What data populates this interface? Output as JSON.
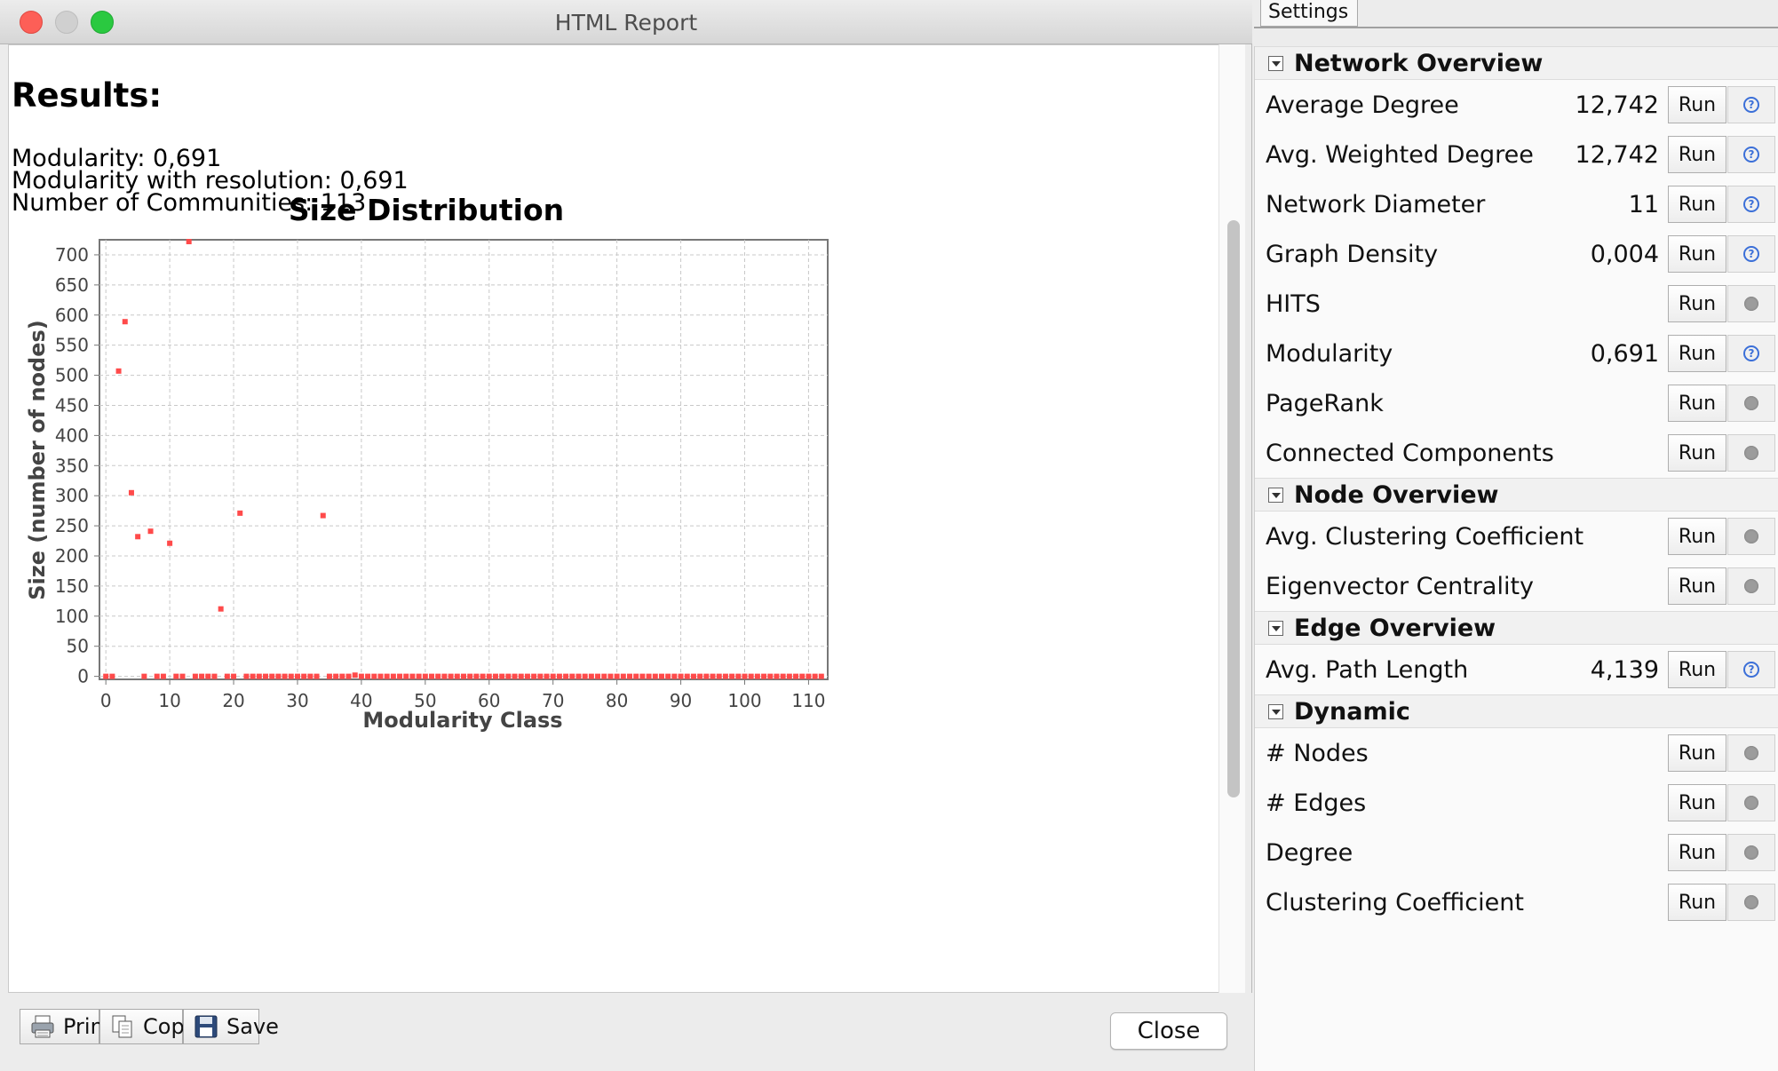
{
  "window": {
    "title": "HTML Report"
  },
  "report": {
    "heading": "Results:",
    "lines": [
      "Modularity: 0,691",
      "Modularity with resolution: 0,691",
      "Number of Communities: 113"
    ]
  },
  "chart_data": {
    "type": "scatter",
    "title": "Size Distribution",
    "xlabel": "Modularity Class",
    "ylabel": "Size (number of nodes)",
    "xlim": [
      -1,
      113
    ],
    "ylim": [
      -5,
      725
    ],
    "xticks": [
      "0",
      "10",
      "20",
      "30",
      "40",
      "50",
      "60",
      "70",
      "80",
      "90",
      "100",
      "110"
    ],
    "yticks": [
      "0",
      "50",
      "100",
      "150",
      "200",
      "250",
      "300",
      "350",
      "400",
      "450",
      "500",
      "550",
      "600",
      "650",
      "700"
    ],
    "grid": true,
    "color": "#ff4a4a",
    "points": [
      [
        0,
        0
      ],
      [
        1,
        0
      ],
      [
        2,
        507
      ],
      [
        3,
        589
      ],
      [
        4,
        305
      ],
      [
        5,
        232
      ],
      [
        6,
        0
      ],
      [
        7,
        241
      ],
      [
        8,
        0
      ],
      [
        9,
        0
      ],
      [
        10,
        221
      ],
      [
        11,
        0
      ],
      [
        12,
        0
      ],
      [
        13,
        722
      ],
      [
        14,
        0
      ],
      [
        15,
        0
      ],
      [
        16,
        0
      ],
      [
        17,
        0
      ],
      [
        18,
        112
      ],
      [
        19,
        0
      ],
      [
        20,
        0
      ],
      [
        21,
        271
      ],
      [
        22,
        0
      ],
      [
        23,
        0
      ],
      [
        24,
        0
      ],
      [
        25,
        0
      ],
      [
        26,
        0
      ],
      [
        27,
        0
      ],
      [
        28,
        0
      ],
      [
        29,
        0
      ],
      [
        30,
        0
      ],
      [
        31,
        0
      ],
      [
        32,
        0
      ],
      [
        33,
        0
      ],
      [
        34,
        267
      ],
      [
        35,
        0
      ],
      [
        36,
        0
      ],
      [
        37,
        0
      ],
      [
        38,
        0
      ],
      [
        39,
        2
      ],
      [
        40,
        0
      ],
      [
        41,
        0
      ],
      [
        42,
        0
      ],
      [
        43,
        0
      ],
      [
        44,
        0
      ],
      [
        45,
        0
      ],
      [
        46,
        0
      ],
      [
        47,
        0
      ],
      [
        48,
        0
      ],
      [
        49,
        0
      ],
      [
        50,
        0
      ],
      [
        51,
        0
      ],
      [
        52,
        0
      ],
      [
        53,
        0
      ],
      [
        54,
        0
      ],
      [
        55,
        0
      ],
      [
        56,
        0
      ],
      [
        57,
        0
      ],
      [
        58,
        0
      ],
      [
        59,
        0
      ],
      [
        60,
        0
      ],
      [
        61,
        0
      ],
      [
        62,
        0
      ],
      [
        63,
        0
      ],
      [
        64,
        0
      ],
      [
        65,
        0
      ],
      [
        66,
        0
      ],
      [
        67,
        0
      ],
      [
        68,
        0
      ],
      [
        69,
        0
      ],
      [
        70,
        0
      ],
      [
        71,
        0
      ],
      [
        72,
        0
      ],
      [
        73,
        0
      ],
      [
        74,
        0
      ],
      [
        75,
        0
      ],
      [
        76,
        0
      ],
      [
        77,
        0
      ],
      [
        78,
        0
      ],
      [
        79,
        0
      ],
      [
        80,
        0
      ],
      [
        81,
        0
      ],
      [
        82,
        0
      ],
      [
        83,
        0
      ],
      [
        84,
        0
      ],
      [
        85,
        0
      ],
      [
        86,
        0
      ],
      [
        87,
        0
      ],
      [
        88,
        0
      ],
      [
        89,
        0
      ],
      [
        90,
        0
      ],
      [
        91,
        0
      ],
      [
        92,
        0
      ],
      [
        93,
        0
      ],
      [
        94,
        0
      ],
      [
        95,
        0
      ],
      [
        96,
        0
      ],
      [
        97,
        0
      ],
      [
        98,
        0
      ],
      [
        99,
        0
      ],
      [
        100,
        0
      ],
      [
        101,
        0
      ],
      [
        102,
        0
      ],
      [
        103,
        0
      ],
      [
        104,
        0
      ],
      [
        105,
        0
      ],
      [
        106,
        0
      ],
      [
        107,
        0
      ],
      [
        108,
        0
      ],
      [
        109,
        0
      ],
      [
        110,
        0
      ],
      [
        111,
        0
      ],
      [
        112,
        0
      ]
    ]
  },
  "footer": {
    "print_label": "Print",
    "copy_label": "Copy",
    "save_label": "Save",
    "close_label": "Close"
  },
  "settings": {
    "tab_label": "Settings",
    "sections": [
      {
        "title": "Network Overview",
        "rows": [
          {
            "name": "Average Degree",
            "value": "12,742",
            "run": "Run",
            "icon": "help-icon"
          },
          {
            "name": "Avg. Weighted Degree",
            "value": "12,742",
            "run": "Run",
            "icon": "help-icon"
          },
          {
            "name": "Network Diameter",
            "value": "11",
            "run": "Run",
            "icon": "help-icon"
          },
          {
            "name": "Graph Density",
            "value": "0,004",
            "run": "Run",
            "icon": "help-icon"
          },
          {
            "name": "HITS",
            "value": "",
            "run": "Run",
            "icon": "status-dot-icon"
          },
          {
            "name": "Modularity",
            "value": "0,691",
            "run": "Run",
            "icon": "help-icon"
          },
          {
            "name": "PageRank",
            "value": "",
            "run": "Run",
            "icon": "status-dot-icon"
          },
          {
            "name": "Connected Components",
            "value": "",
            "run": "Run",
            "icon": "status-dot-icon"
          }
        ]
      },
      {
        "title": "Node Overview",
        "rows": [
          {
            "name": "Avg. Clustering Coefficient",
            "value": "",
            "run": "Run",
            "icon": "status-dot-icon"
          },
          {
            "name": "Eigenvector Centrality",
            "value": "",
            "run": "Run",
            "icon": "status-dot-icon"
          }
        ]
      },
      {
        "title": "Edge Overview",
        "rows": [
          {
            "name": "Avg. Path Length",
            "value": "4,139",
            "run": "Run",
            "icon": "help-icon"
          }
        ]
      },
      {
        "title": "Dynamic",
        "rows": [
          {
            "name": "# Nodes",
            "value": "",
            "run": "Run",
            "icon": "status-dot-icon"
          },
          {
            "name": "# Edges",
            "value": "",
            "run": "Run",
            "icon": "status-dot-icon"
          },
          {
            "name": "Degree",
            "value": "",
            "run": "Run",
            "icon": "status-dot-icon"
          },
          {
            "name": "Clustering Coefficient",
            "value": "",
            "run": "Run",
            "icon": "status-dot-icon"
          }
        ]
      }
    ]
  }
}
